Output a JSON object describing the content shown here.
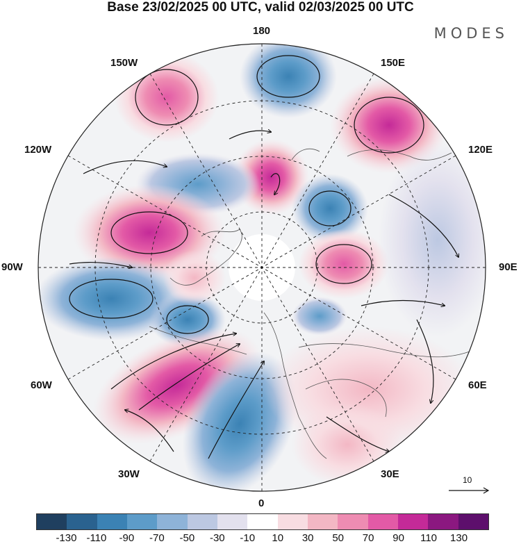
{
  "title": "Base 23/02/2025 00 UTC, valid 02/03/2025 00 UTC",
  "brand": "MODES",
  "lon_labels": {
    "top": "180",
    "bottom": "0",
    "left": "90W",
    "right": "90E",
    "upper_left_1": "150W",
    "upper_left_2": "120W",
    "lower_left_1": "60W",
    "lower_left_2": "30W",
    "upper_right_1": "150E",
    "upper_right_2": "120E",
    "lower_right_1": "60E",
    "lower_right_2": "30E"
  },
  "vector_reference": "10",
  "colorbar": {
    "colors": [
      "#1f3f5f",
      "#2a628f",
      "#3b82b4",
      "#5d9cc9",
      "#8eb3d8",
      "#bcc8e2",
      "#e3e1ee",
      "#ffffff",
      "#f8dde2",
      "#f3b7c4",
      "#ee8cb2",
      "#e35aa6",
      "#c42a98",
      "#8b1880",
      "#5d0f6c"
    ],
    "tick_labels": [
      "-130",
      "-110",
      "-90",
      "-70",
      "-50",
      "-30",
      "-10",
      "10",
      "30",
      "50",
      "70",
      "90",
      "110",
      "130"
    ]
  },
  "anomaly_cells": [
    {
      "lat": 63,
      "lon": 172,
      "level": -70
    },
    {
      "lat": 58,
      "lon": 143,
      "level": 90
    },
    {
      "lat": 56,
      "lon": -160,
      "level": 50
    },
    {
      "lat": 72,
      "lon": 158,
      "level": 90
    },
    {
      "lat": 66,
      "lon": -140,
      "level": -70
    },
    {
      "lat": 62,
      "lon": -108,
      "level": 90
    },
    {
      "lat": 55,
      "lon": -82,
      "level": -70
    },
    {
      "lat": 63,
      "lon": -70,
      "level": -90
    },
    {
      "lat": 50,
      "lon": -48,
      "level": 110
    },
    {
      "lat": 58,
      "lon": -12,
      "level": -90
    },
    {
      "lat": 70,
      "lon": 128,
      "level": -90
    },
    {
      "lat": 72,
      "lon": 92,
      "level": 90
    },
    {
      "lat": 72,
      "lon": 62,
      "level": -70
    },
    {
      "lat": 45,
      "lon": 100,
      "level": -50
    },
    {
      "lat": 40,
      "lon": 45,
      "level": 50
    },
    {
      "lat": 50,
      "lon": 20,
      "level": 30
    }
  ]
}
